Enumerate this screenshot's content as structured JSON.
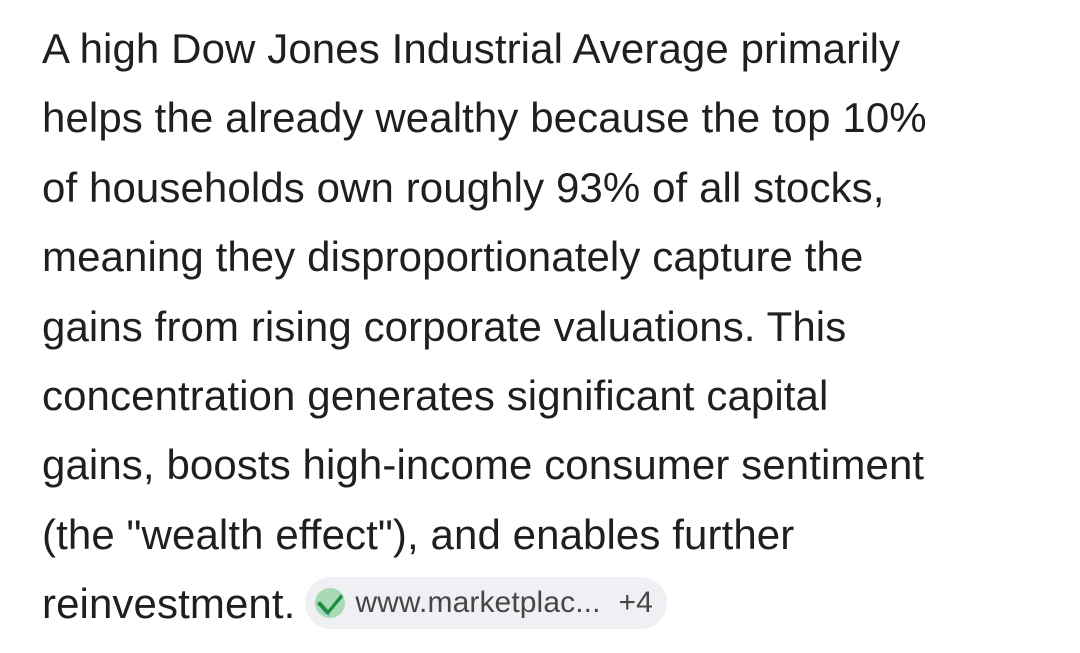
{
  "answer": {
    "lines": [
      "A high Dow Jones Industrial Average primarily",
      "helps the already wealthy because the top 10%",
      "of households own roughly 93% of all stocks,",
      "meaning they disproportionately capture the",
      "gains from rising corporate valuations. This",
      "concentration generates significant capital",
      "gains, boosts high-income consumer sentiment",
      "(the \"wealth effect\"), and enables further",
      "reinvestment."
    ]
  },
  "source_chip": {
    "icon": "green-check-badge-icon",
    "site": "www.marketplac...",
    "more_count": "+4",
    "colors": {
      "chip_bg": "#eef0f3",
      "icon_dark_green": "#1e8e3e",
      "icon_light_green": "#a8dab5",
      "icon_blue": "#4a9fd8"
    }
  }
}
